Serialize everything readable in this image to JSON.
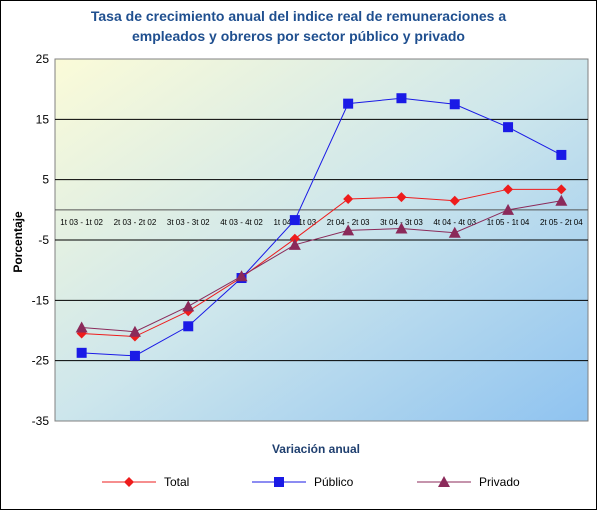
{
  "chart_data": {
    "type": "line",
    "title": "Tasa de crecimiento anual del indice real de remuneraciones  a\nempleados y obreros por sector público y privado",
    "xlabel": "Variación anual",
    "ylabel": "Porcentaje",
    "ylim": [
      -35,
      25
    ],
    "yticks": [
      25,
      15,
      5,
      -5,
      -15,
      -25,
      -35
    ],
    "grid": true,
    "legend_position": "bottom",
    "categories": [
      "1t 03 - 1t 02",
      "2t 03 - 2t 02",
      "3t 03 - 3t 02",
      "4t 03 - 4t 02",
      "1t 04 - 1t 03",
      "2t 04 - 2t 03",
      "3t 04 - 3t 03",
      "4t 04 - 4t 03",
      "1t 05 - 1t 04",
      "2t 05 - 2t 04"
    ],
    "series": [
      {
        "name": "Total",
        "color": "#ee1c1c",
        "marker": "diamond",
        "values": [
          -20.5,
          -21.0,
          -16.8,
          -11.2,
          -4.8,
          1.8,
          2.1,
          1.5,
          3.4,
          3.4
        ]
      },
      {
        "name": "Público",
        "color": "#1a1ae6",
        "marker": "square",
        "values": [
          -23.7,
          -24.2,
          -19.3,
          -11.3,
          -1.7,
          17.6,
          18.5,
          17.5,
          13.7,
          9.1
        ]
      },
      {
        "name": "Privado",
        "color": "#8b2a5a",
        "marker": "triangle",
        "values": [
          -19.5,
          -20.2,
          -16.0,
          -11.0,
          -5.8,
          -3.4,
          -3.1,
          -3.8,
          0.0,
          1.5
        ]
      }
    ]
  }
}
